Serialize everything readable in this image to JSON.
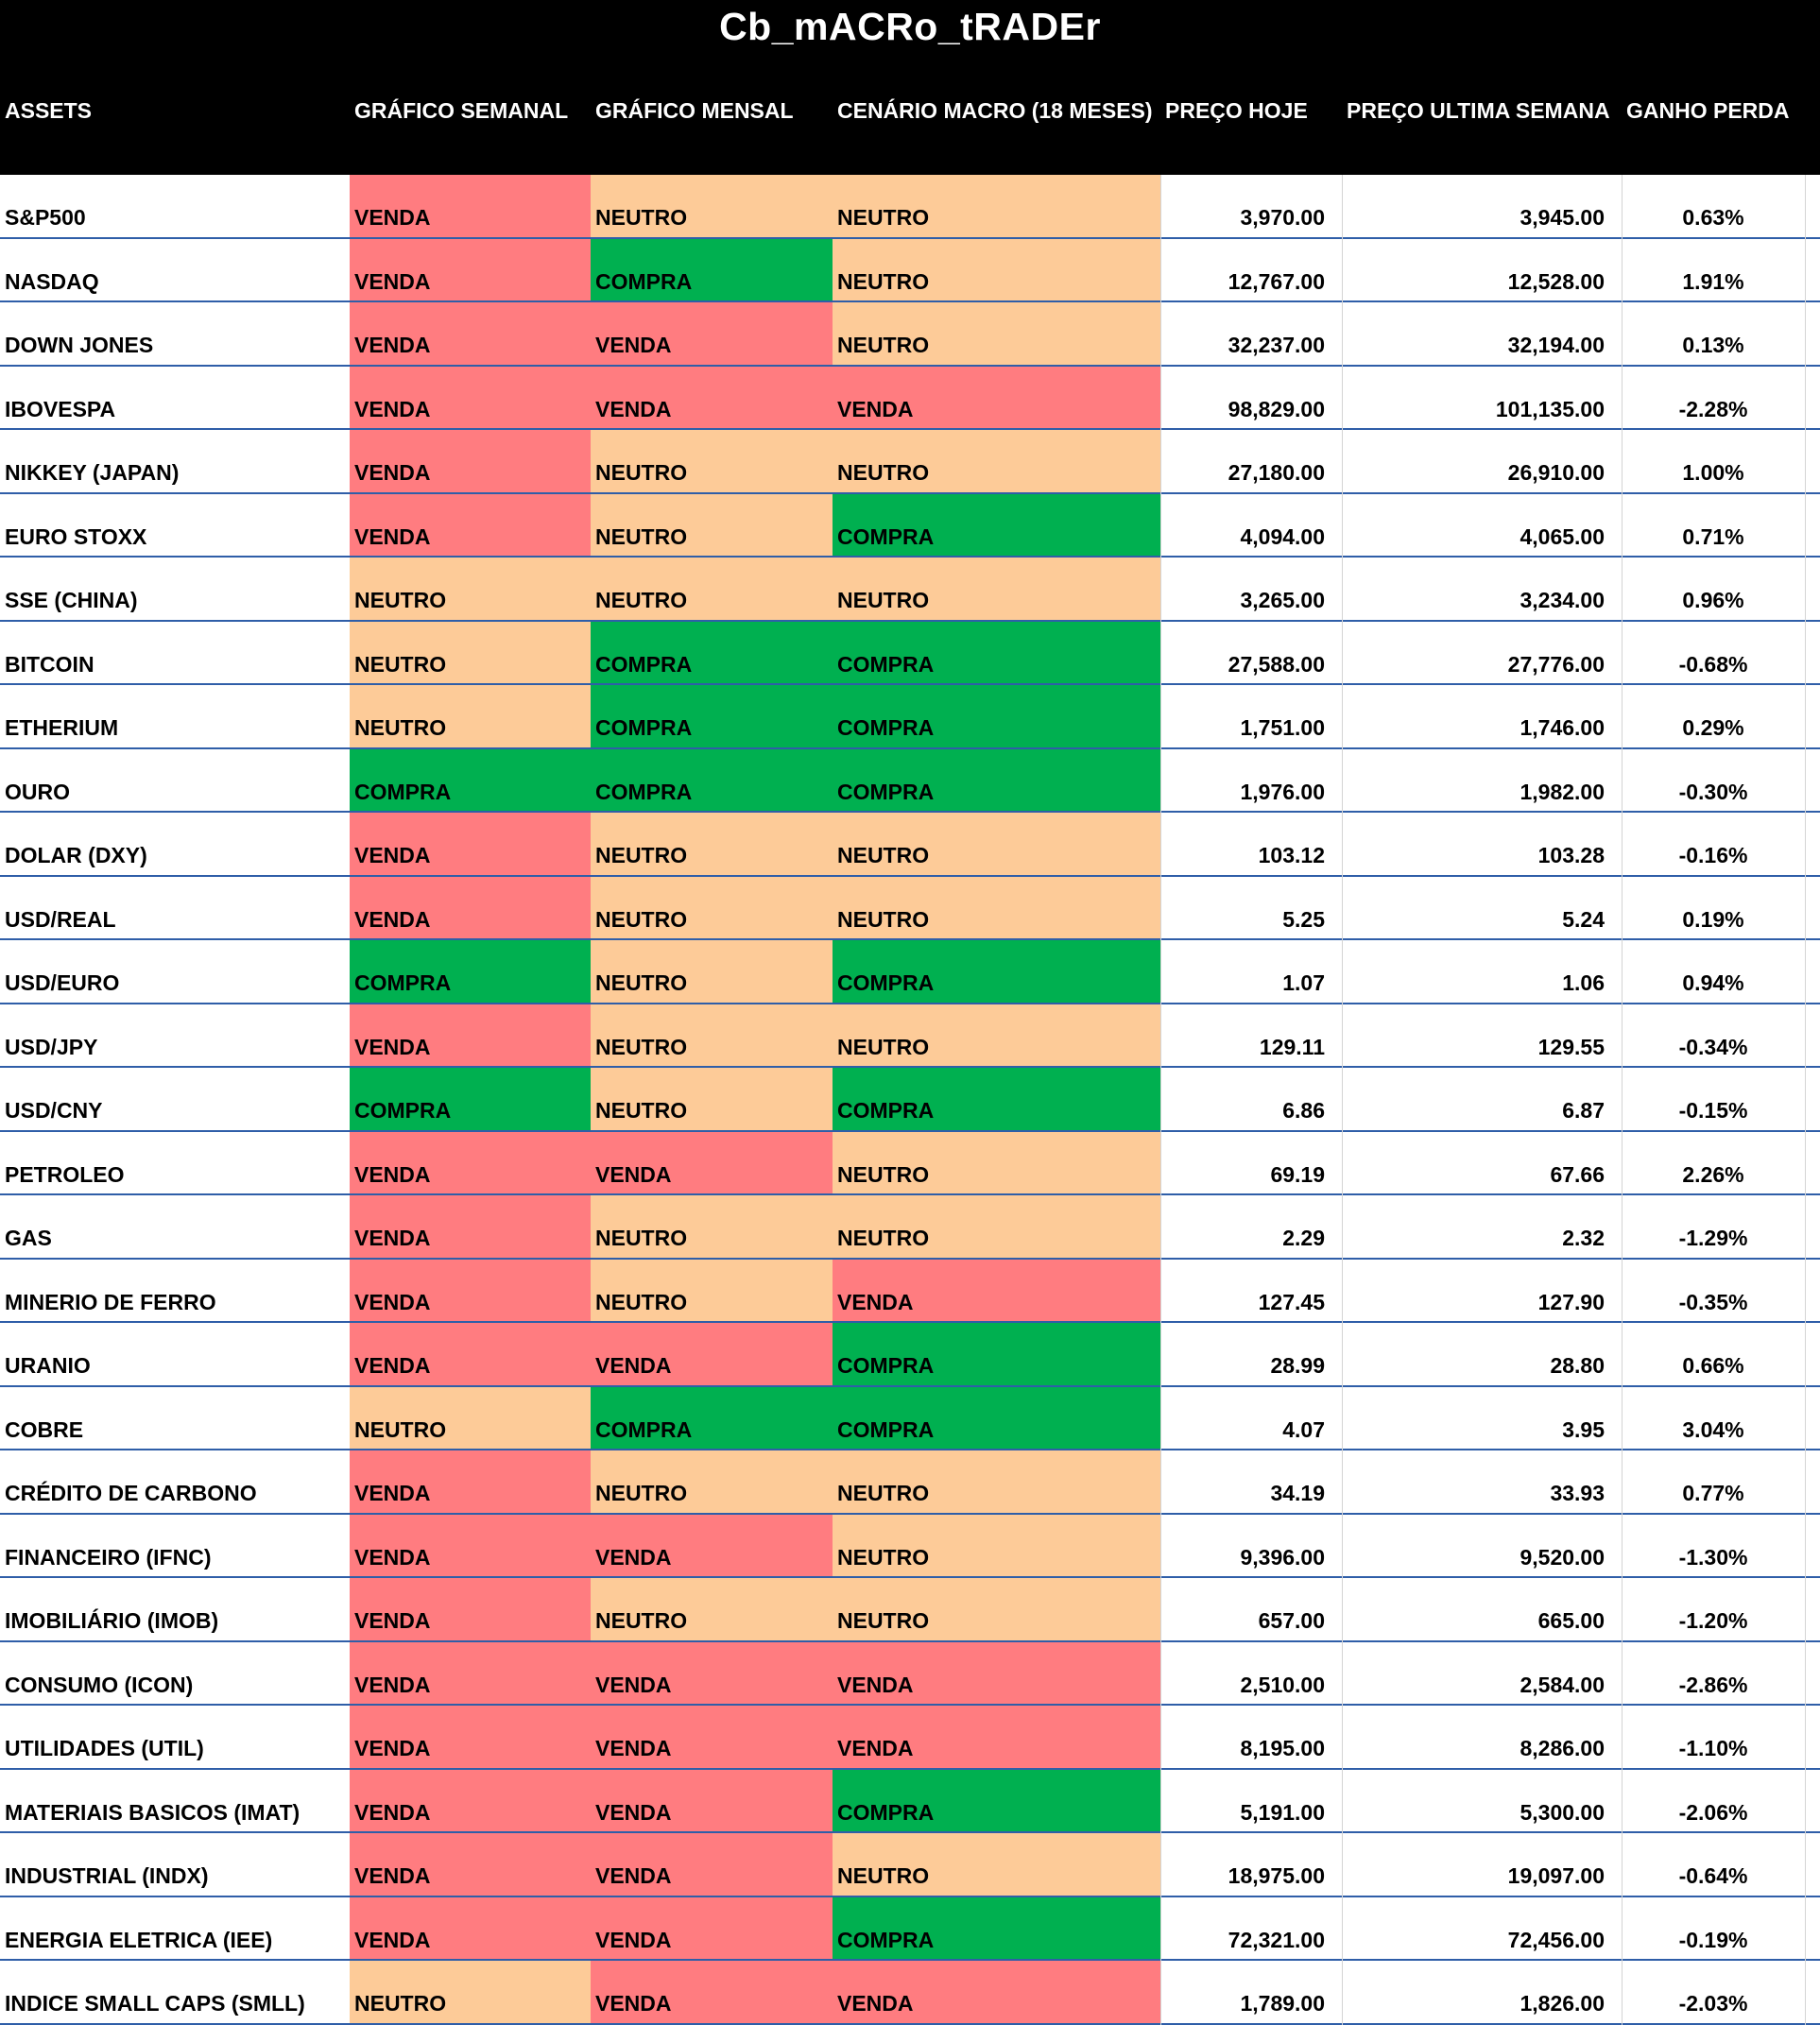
{
  "title": "Cb_mACRo_tRADEr",
  "headers": [
    "ASSETS",
    "GRÁFICO SEMANAL",
    "GRÁFICO MENSAL",
    "CENÁRIO MACRO (18 MESES)",
    "PREÇO HOJE",
    "PREÇO ULTIMA SEMANA",
    "GANHO PERDA"
  ],
  "signal_colors": {
    "VENDA": "#ff7c80",
    "NEUTRO": "#fdcb98",
    "COMPRA": "#00b050"
  },
  "rows": [
    {
      "asset": "S&P500",
      "semanal": "VENDA",
      "mensal": "NEUTRO",
      "macro": "NEUTRO",
      "preco_hoje": "3,970.00",
      "preco_semana": "3,945.00",
      "ganho": "0.63%"
    },
    {
      "asset": "NASDAQ",
      "semanal": "VENDA",
      "mensal": "COMPRA",
      "macro": "NEUTRO",
      "preco_hoje": "12,767.00",
      "preco_semana": "12,528.00",
      "ganho": "1.91%"
    },
    {
      "asset": "DOWN JONES",
      "semanal": "VENDA",
      "mensal": "VENDA",
      "macro": "NEUTRO",
      "preco_hoje": "32,237.00",
      "preco_semana": "32,194.00",
      "ganho": "0.13%"
    },
    {
      "asset": "IBOVESPA",
      "semanal": "VENDA",
      "mensal": "VENDA",
      "macro": "VENDA",
      "preco_hoje": "98,829.00",
      "preco_semana": "101,135.00",
      "ganho": "-2.28%"
    },
    {
      "asset": "NIKKEY (JAPAN)",
      "semanal": "VENDA",
      "mensal": "NEUTRO",
      "macro": "NEUTRO",
      "preco_hoje": "27,180.00",
      "preco_semana": "26,910.00",
      "ganho": "1.00%"
    },
    {
      "asset": "EURO STOXX",
      "semanal": "VENDA",
      "mensal": "NEUTRO",
      "macro": "COMPRA",
      "preco_hoje": "4,094.00",
      "preco_semana": "4,065.00",
      "ganho": "0.71%"
    },
    {
      "asset": "SSE (CHINA)",
      "semanal": "NEUTRO",
      "mensal": "NEUTRO",
      "macro": "NEUTRO",
      "preco_hoje": "3,265.00",
      "preco_semana": "3,234.00",
      "ganho": "0.96%"
    },
    {
      "asset": "BITCOIN",
      "semanal": "NEUTRO",
      "mensal": "COMPRA",
      "macro": "COMPRA",
      "preco_hoje": "27,588.00",
      "preco_semana": "27,776.00",
      "ganho": "-0.68%"
    },
    {
      "asset": "ETHERIUM",
      "semanal": "NEUTRO",
      "mensal": "COMPRA",
      "macro": "COMPRA",
      "preco_hoje": "1,751.00",
      "preco_semana": "1,746.00",
      "ganho": "0.29%"
    },
    {
      "asset": "OURO",
      "semanal": "COMPRA",
      "mensal": "COMPRA",
      "macro": "COMPRA",
      "preco_hoje": "1,976.00",
      "preco_semana": "1,982.00",
      "ganho": "-0.30%"
    },
    {
      "asset": "DOLAR (DXY)",
      "semanal": "VENDA",
      "mensal": "NEUTRO",
      "macro": "NEUTRO",
      "preco_hoje": "103.12",
      "preco_semana": "103.28",
      "ganho": "-0.16%"
    },
    {
      "asset": "USD/REAL",
      "semanal": "VENDA",
      "mensal": "NEUTRO",
      "macro": "NEUTRO",
      "preco_hoje": "5.25",
      "preco_semana": "5.24",
      "ganho": "0.19%"
    },
    {
      "asset": "USD/EURO",
      "semanal": "COMPRA",
      "mensal": "NEUTRO",
      "macro": "COMPRA",
      "preco_hoje": "1.07",
      "preco_semana": "1.06",
      "ganho": "0.94%"
    },
    {
      "asset": "USD/JPY",
      "semanal": "VENDA",
      "mensal": "NEUTRO",
      "macro": "NEUTRO",
      "preco_hoje": "129.11",
      "preco_semana": "129.55",
      "ganho": "-0.34%"
    },
    {
      "asset": "USD/CNY",
      "semanal": "COMPRA",
      "mensal": "NEUTRO",
      "macro": "COMPRA",
      "preco_hoje": "6.86",
      "preco_semana": "6.87",
      "ganho": "-0.15%"
    },
    {
      "asset": "PETROLEO",
      "semanal": "VENDA",
      "mensal": "VENDA",
      "macro": "NEUTRO",
      "preco_hoje": "69.19",
      "preco_semana": "67.66",
      "ganho": "2.26%"
    },
    {
      "asset": "GAS",
      "semanal": "VENDA",
      "mensal": "NEUTRO",
      "macro": "NEUTRO",
      "preco_hoje": "2.29",
      "preco_semana": "2.32",
      "ganho": "-1.29%"
    },
    {
      "asset": "MINERIO DE FERRO",
      "semanal": "VENDA",
      "mensal": "NEUTRO",
      "macro": "VENDA",
      "preco_hoje": "127.45",
      "preco_semana": "127.90",
      "ganho": "-0.35%"
    },
    {
      "asset": "URANIO",
      "semanal": "VENDA",
      "mensal": "VENDA",
      "macro": "COMPRA",
      "preco_hoje": "28.99",
      "preco_semana": "28.80",
      "ganho": "0.66%"
    },
    {
      "asset": "COBRE",
      "semanal": "NEUTRO",
      "mensal": "COMPRA",
      "macro": "COMPRA",
      "preco_hoje": "4.07",
      "preco_semana": "3.95",
      "ganho": "3.04%"
    },
    {
      "asset": "CRÉDITO DE CARBONO",
      "semanal": "VENDA",
      "mensal": "NEUTRO",
      "macro": "NEUTRO",
      "preco_hoje": "34.19",
      "preco_semana": "33.93",
      "ganho": "0.77%"
    },
    {
      "asset": "FINANCEIRO (IFNC)",
      "semanal": "VENDA",
      "mensal": "VENDA",
      "macro": "NEUTRO",
      "preco_hoje": "9,396.00",
      "preco_semana": "9,520.00",
      "ganho": "-1.30%"
    },
    {
      "asset": "IMOBILIÁRIO (IMOB)",
      "semanal": "VENDA",
      "mensal": "NEUTRO",
      "macro": "NEUTRO",
      "preco_hoje": "657.00",
      "preco_semana": "665.00",
      "ganho": "-1.20%"
    },
    {
      "asset": "CONSUMO (ICON)",
      "semanal": "VENDA",
      "mensal": "VENDA",
      "macro": "VENDA",
      "preco_hoje": "2,510.00",
      "preco_semana": "2,584.00",
      "ganho": "-2.86%"
    },
    {
      "asset": "UTILIDADES (UTIL)",
      "semanal": "VENDA",
      "mensal": "VENDA",
      "macro": "VENDA",
      "preco_hoje": "8,195.00",
      "preco_semana": "8,286.00",
      "ganho": "-1.10%"
    },
    {
      "asset": "MATERIAIS BASICOS (IMAT)",
      "semanal": "VENDA",
      "mensal": "VENDA",
      "macro": "COMPRA",
      "preco_hoje": "5,191.00",
      "preco_semana": "5,300.00",
      "ganho": "-2.06%"
    },
    {
      "asset": "INDUSTRIAL (INDX)",
      "semanal": "VENDA",
      "mensal": "VENDA",
      "macro": "NEUTRO",
      "preco_hoje": "18,975.00",
      "preco_semana": "19,097.00",
      "ganho": "-0.64%"
    },
    {
      "asset": "ENERGIA ELETRICA (IEE)",
      "semanal": "VENDA",
      "mensal": "VENDA",
      "macro": "COMPRA",
      "preco_hoje": "72,321.00",
      "preco_semana": "72,456.00",
      "ganho": "-0.19%"
    },
    {
      "asset": "INDICE SMALL CAPS (SMLL)",
      "semanal": "NEUTRO",
      "mensal": "VENDA",
      "macro": "VENDA",
      "preco_hoje": "1,789.00",
      "preco_semana": "1,826.00",
      "ganho": "-2.03%"
    }
  ]
}
